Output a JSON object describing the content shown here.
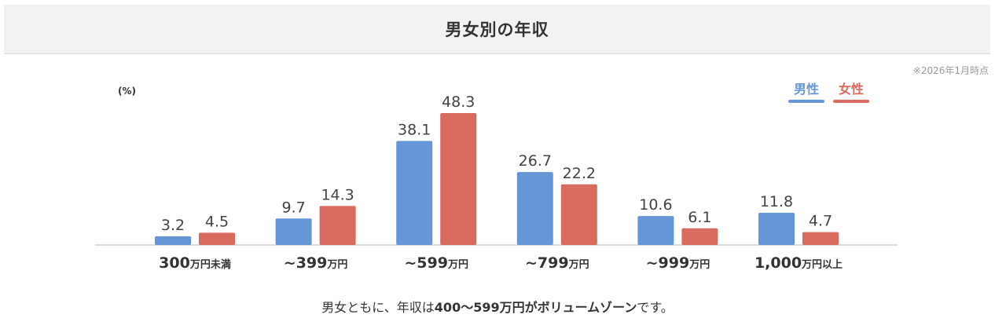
{
  "header": {
    "title": "男女別の年収"
  },
  "note": "※2026年1月時点",
  "unit_label": "(%)",
  "legend": [
    {
      "label": "男性",
      "color": "#6596d8"
    },
    {
      "label": "女性",
      "color": "#d86a5f"
    }
  ],
  "colors": {
    "male": "#6596d8",
    "female": "#d86a5f",
    "value_text": "#444444",
    "axis": "#bbbbbb"
  },
  "summary": {
    "prefix": "男女ともに、年収は",
    "highlight": "400〜599万円がボリュームゾーン",
    "suffix": "です。"
  },
  "chart_data": {
    "type": "bar",
    "title": "男女別の年収",
    "ylabel": "(%)",
    "categories": [
      {
        "main": "300",
        "sub": "万円未満"
      },
      {
        "main": "~399",
        "sub": "万円"
      },
      {
        "main": "~599",
        "sub": "万円"
      },
      {
        "main": "~799",
        "sub": "万円"
      },
      {
        "main": "~999",
        "sub": "万円"
      },
      {
        "main": "1,000",
        "sub": "万円以上"
      }
    ],
    "series": [
      {
        "name": "男性",
        "values": [
          3.2,
          9.7,
          38.1,
          26.7,
          10.6,
          11.8
        ]
      },
      {
        "name": "女性",
        "values": [
          4.5,
          14.3,
          48.3,
          22.2,
          6.1,
          4.7
        ]
      }
    ],
    "ylim": [
      0,
      48.3
    ],
    "grid": false,
    "legend_position": "top-right"
  }
}
